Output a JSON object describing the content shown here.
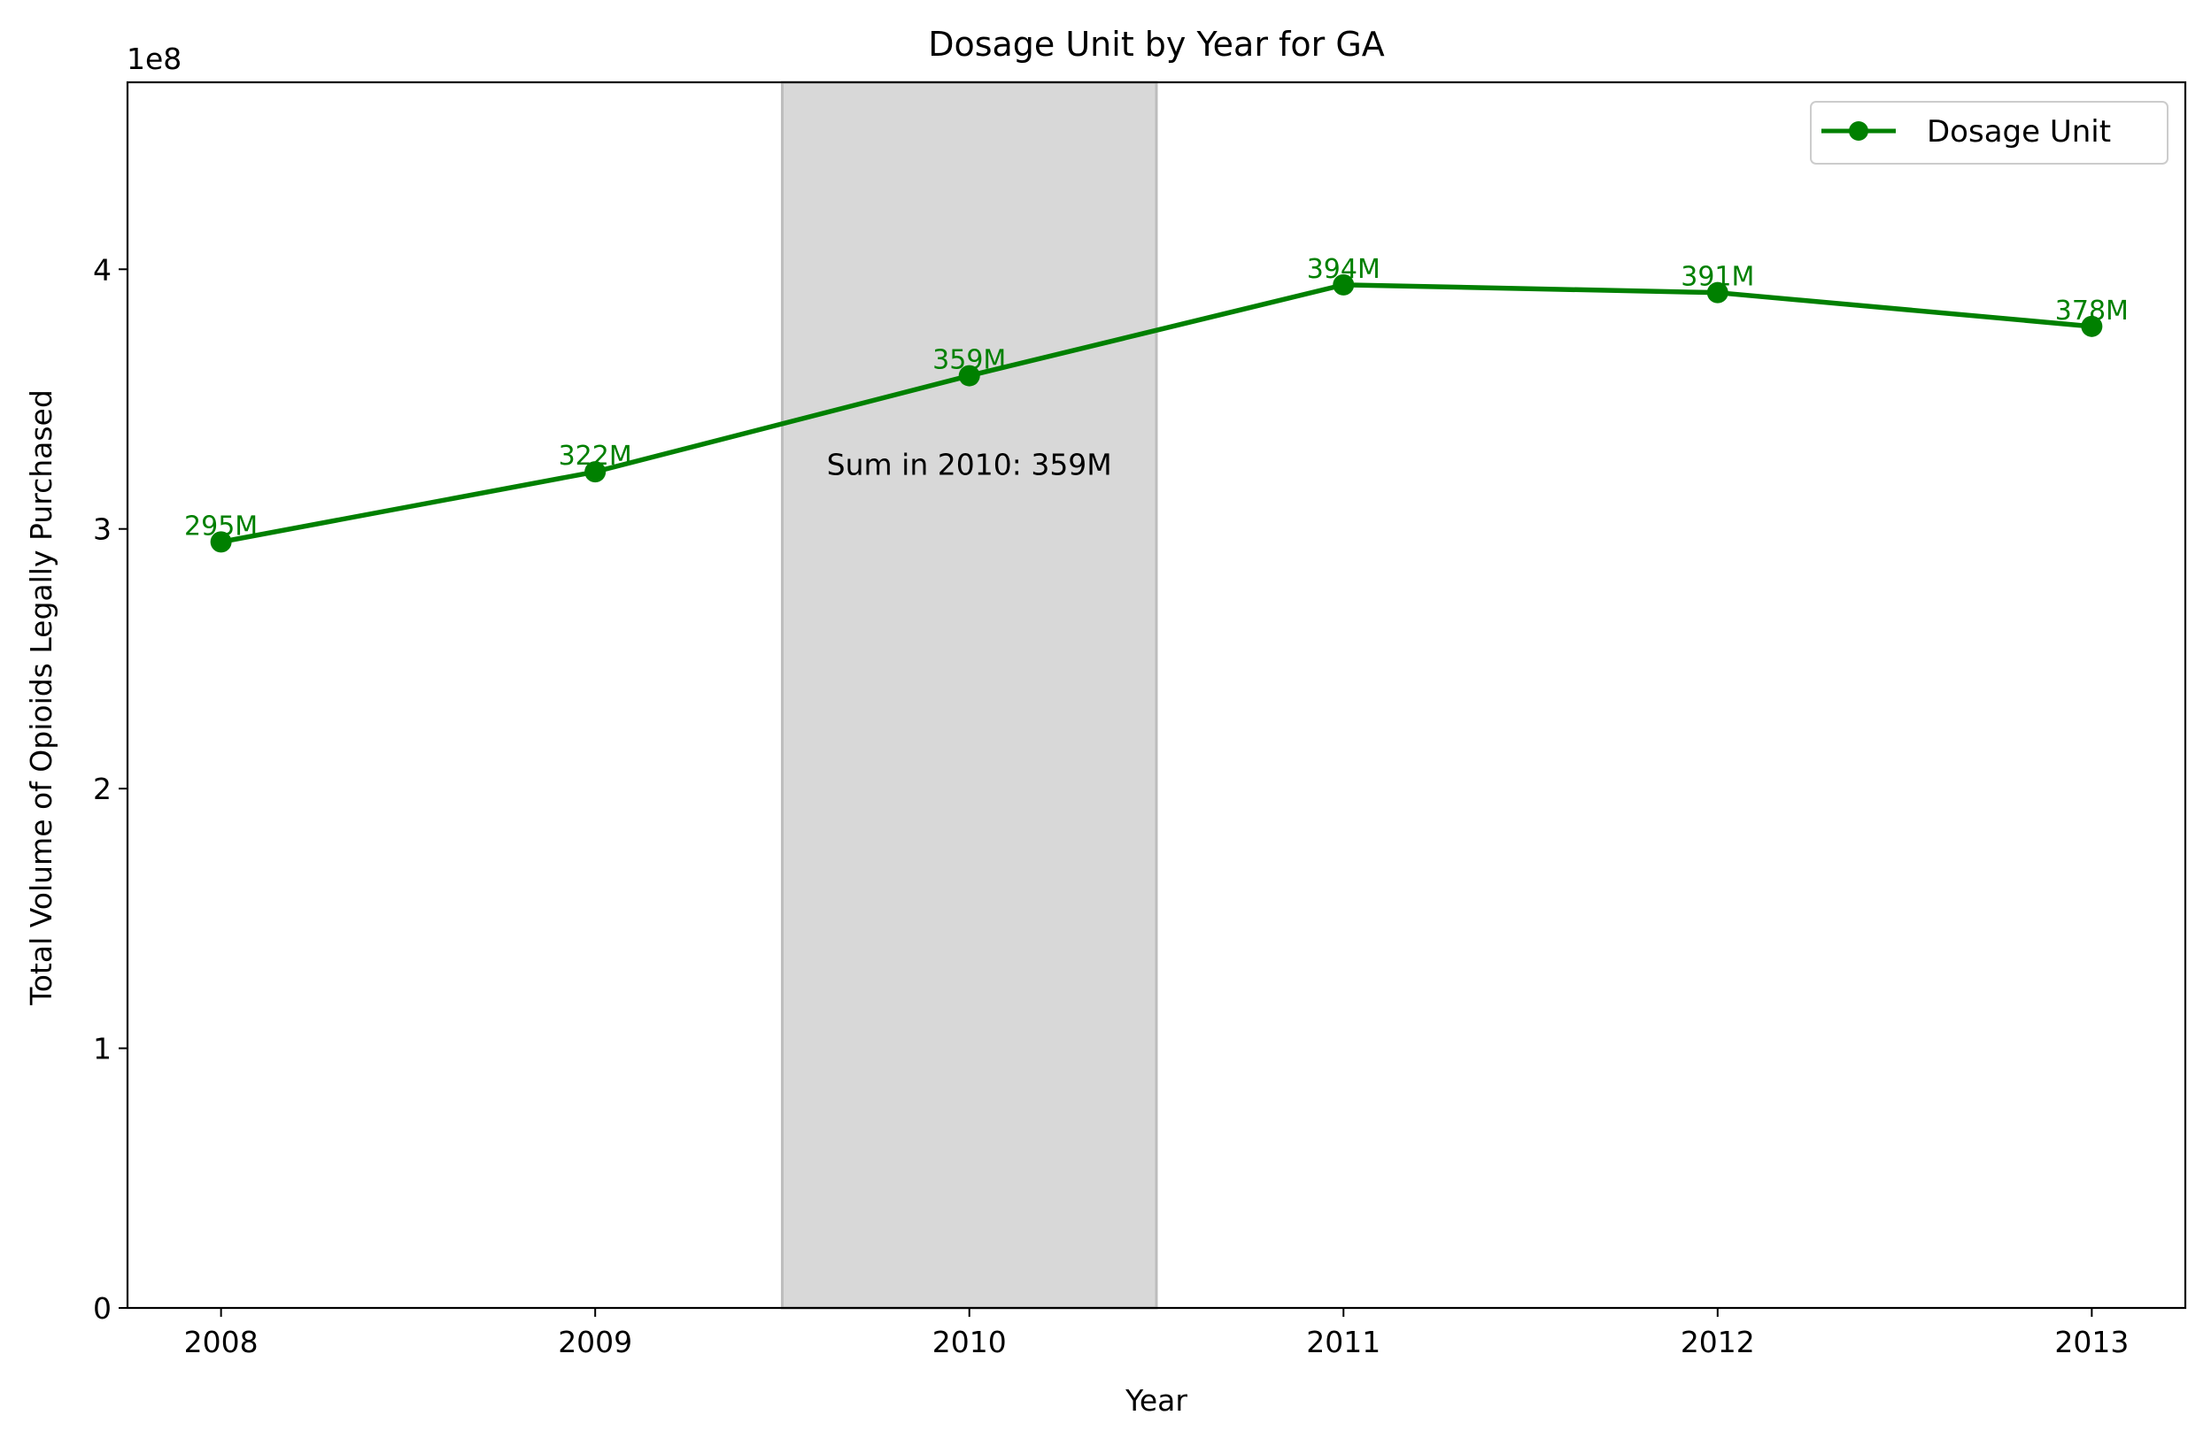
{
  "chart_data": {
    "type": "line",
    "title": "Dosage Unit by Year for GA",
    "xlabel": "Year",
    "ylabel": "Total Volume of Opioids Legally Purchased",
    "y_scale_label": "1e8",
    "x": [
      2008,
      2009,
      2010,
      2011,
      2012,
      2013
    ],
    "x_tick_labels": [
      "2008",
      "2009",
      "2010",
      "2011",
      "2012",
      "2013"
    ],
    "y_ticks": [
      0,
      1,
      2,
      3,
      4
    ],
    "y_tick_labels": [
      "0",
      "1",
      "2",
      "3",
      "4"
    ],
    "ylim": [
      0,
      4.72
    ],
    "xlim": [
      2007.75,
      2013.25
    ],
    "series": [
      {
        "name": "Dosage Unit",
        "color": "#008000",
        "values": [
          2.95,
          3.22,
          3.59,
          3.94,
          3.91,
          3.78
        ],
        "labels": [
          "295M",
          "322M",
          "359M",
          "394M",
          "391M",
          "378M"
        ]
      }
    ],
    "highlight_span": {
      "from": 2009.5,
      "to": 2010.5,
      "color": "#d8d8d8"
    },
    "annotation": {
      "text": "Sum in 2010: 359M",
      "x": 2010,
      "y": 3.25
    },
    "legend": {
      "position": "top-right"
    },
    "grid": false
  }
}
